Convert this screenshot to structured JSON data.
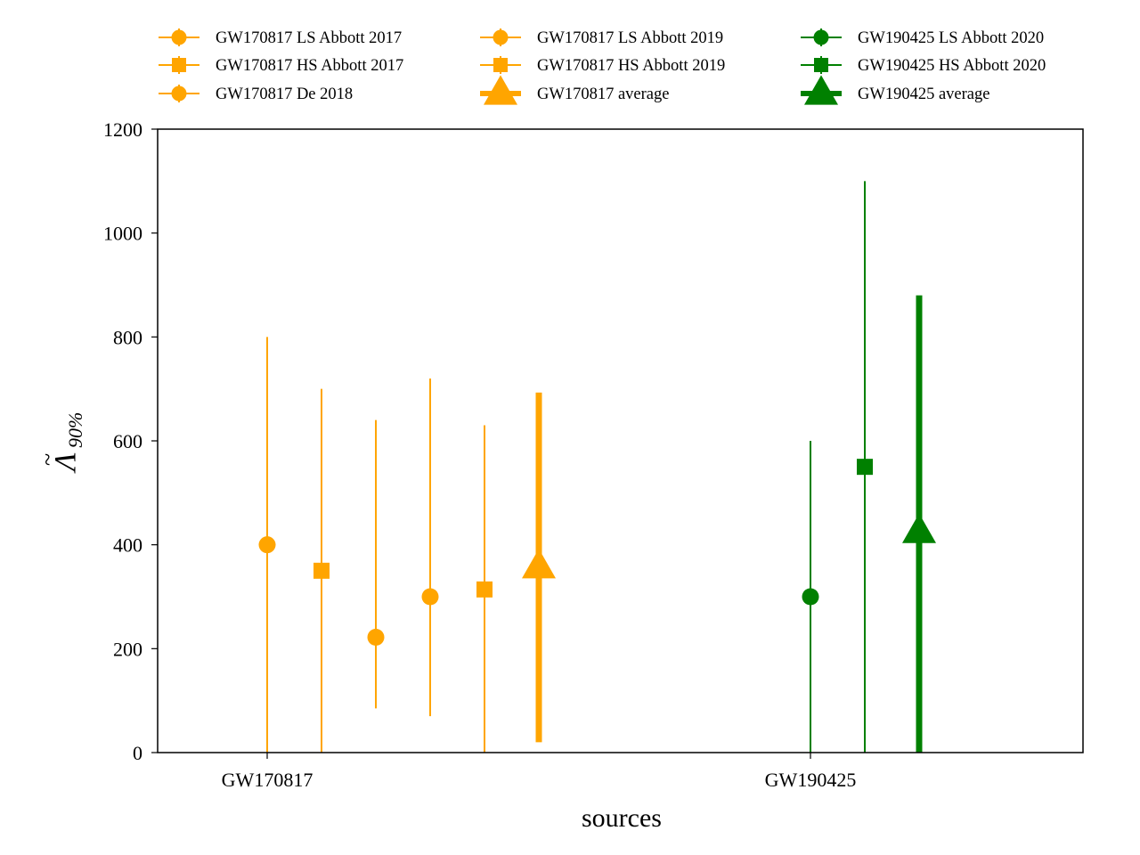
{
  "chart_data": {
    "type": "errorbar",
    "title": "",
    "xlabel": "sources",
    "ylabel_main": "Λ",
    "ylabel_tilde": "~",
    "ylabel_sub": "90%",
    "ylim": [
      0,
      1200
    ],
    "yticks": [
      "0",
      "200",
      "400",
      "600",
      "800",
      "1000",
      "1200"
    ],
    "categories": [
      "GW170817",
      "GW190425"
    ],
    "grid": false,
    "legend_position": "above plot, three columns",
    "colors": {
      "GW170817": "#ffa500",
      "GW190425": "#008000"
    },
    "series": [
      {
        "name": "GW170817 LS Abbott 2017",
        "source": "GW170817",
        "marker": "circle",
        "value": 400,
        "err_low": 0,
        "err_high": 800,
        "avg": false
      },
      {
        "name": "GW170817 HS Abbott 2017",
        "source": "GW170817",
        "marker": "square",
        "value": 350,
        "err_low": 0,
        "err_high": 700,
        "avg": false
      },
      {
        "name": "GW170817 De 2018",
        "source": "GW170817",
        "marker": "circle",
        "value": 222,
        "err_low": 85,
        "err_high": 640,
        "avg": false
      },
      {
        "name": "GW170817 LS Abbott 2019",
        "source": "GW170817",
        "marker": "circle",
        "value": 300,
        "err_low": 70,
        "err_high": 720,
        "avg": false
      },
      {
        "name": "GW170817 HS Abbott 2019",
        "source": "GW170817",
        "marker": "square",
        "value": 314,
        "err_low": 0,
        "err_high": 630,
        "avg": false
      },
      {
        "name": "GW170817 average",
        "source": "GW170817",
        "marker": "triangle",
        "value": 357,
        "err_low": 20,
        "err_high": 693,
        "avg": true
      },
      {
        "name": "GW190425 LS Abbott 2020",
        "source": "GW190425",
        "marker": "circle",
        "value": 300,
        "err_low": 0,
        "err_high": 600,
        "avg": false
      },
      {
        "name": "GW190425 HS Abbott 2020",
        "source": "GW190425",
        "marker": "square",
        "value": 550,
        "err_low": 0,
        "err_high": 1100,
        "avg": false
      },
      {
        "name": "GW190425 average",
        "source": "GW190425",
        "marker": "triangle",
        "value": 425,
        "err_low": 0,
        "err_high": 880,
        "avg": true
      }
    ],
    "legend": [
      [
        "GW170817 LS Abbott 2017",
        "GW170817 HS Abbott 2017",
        "GW170817 De 2018"
      ],
      [
        "GW170817 LS Abbott 2019",
        "GW170817 HS Abbott 2019",
        "GW170817 average"
      ],
      [
        "GW190425 LS Abbott 2020",
        "GW190425 HS Abbott 2020",
        "GW190425 average"
      ]
    ]
  }
}
